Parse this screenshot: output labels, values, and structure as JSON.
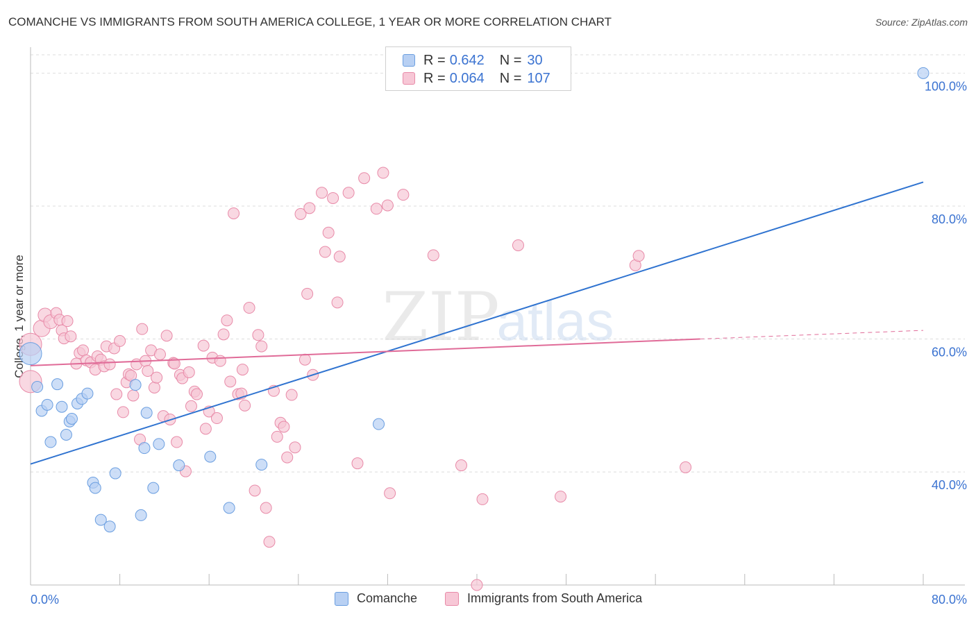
{
  "title": "COMANCHE VS IMMIGRANTS FROM SOUTH AMERICA COLLEGE, 1 YEAR OR MORE CORRELATION CHART",
  "source": "Source: ZipAtlas.com",
  "watermark": {
    "zip": "ZIP",
    "atlas": "atlas"
  },
  "legend_top": {
    "rows": [
      {
        "r_label": "R =",
        "r_value": "0.642",
        "n_label": "N =",
        "n_value": "30"
      },
      {
        "r_label": "R =",
        "r_value": "0.064",
        "n_label": "N =",
        "n_value": "107"
      }
    ]
  },
  "legend_bottom": [
    "Comanche",
    "Immigrants from South America"
  ],
  "colors": {
    "comanche_fill": "#b8d0f3",
    "comanche_stroke": "#6a9ee0",
    "comanche_line": "#2f73d0",
    "immig_fill": "#f7c7d6",
    "immig_stroke": "#e88aa8",
    "immig_line": "#e06b98",
    "axis_text": "#3b73d1",
    "grid": "#dddddd"
  },
  "chart_data": {
    "type": "scatter",
    "title": "COMANCHE VS IMMIGRANTS FROM SOUTH AMERICA COLLEGE, 1 YEAR OR MORE CORRELATION CHART",
    "xlabel": "",
    "ylabel": "College, 1 year or more",
    "xlim": [
      0,
      80
    ],
    "ylim": [
      23,
      102
    ],
    "x_tick_labels": [
      "0.0%",
      "80.0%"
    ],
    "y_tick_labels": [
      "40.0%",
      "60.0%",
      "80.0%",
      "100.0%"
    ],
    "y_gridlines": [
      40,
      60,
      80,
      100
    ],
    "grid": true,
    "legend_position": "top-center",
    "series": [
      {
        "name": "Comanche",
        "R": 0.642,
        "N": 30,
        "trend": {
          "x": [
            0,
            80
          ],
          "y": [
            41.2,
            83.6
          ],
          "dashed_from": null
        },
        "points": [
          [
            0.0,
            57.8,
            16
          ],
          [
            0.6,
            52.8,
            8
          ],
          [
            1.0,
            49.2,
            8
          ],
          [
            1.5,
            50.1,
            8
          ],
          [
            1.8,
            44.5,
            8
          ],
          [
            2.4,
            53.2,
            8
          ],
          [
            2.8,
            49.8,
            8
          ],
          [
            3.2,
            45.6,
            8
          ],
          [
            3.5,
            47.6,
            8
          ],
          [
            3.7,
            48.0,
            8
          ],
          [
            4.2,
            50.3,
            8
          ],
          [
            4.6,
            51.0,
            8
          ],
          [
            5.1,
            51.8,
            8
          ],
          [
            5.6,
            38.4,
            8
          ],
          [
            5.8,
            37.6,
            8
          ],
          [
            6.3,
            32.8,
            8
          ],
          [
            7.1,
            31.8,
            8
          ],
          [
            7.6,
            39.8,
            8
          ],
          [
            9.4,
            53.1,
            8
          ],
          [
            9.9,
            33.5,
            8
          ],
          [
            10.2,
            43.6,
            8
          ],
          [
            10.4,
            48.9,
            8
          ],
          [
            11.0,
            37.6,
            8
          ],
          [
            11.5,
            44.2,
            8
          ],
          [
            13.3,
            41.0,
            8
          ],
          [
            16.1,
            42.3,
            8
          ],
          [
            17.8,
            34.6,
            8
          ],
          [
            20.7,
            41.1,
            8
          ],
          [
            31.2,
            47.2,
            8
          ],
          [
            80.0,
            100.0,
            8
          ]
        ]
      },
      {
        "name": "Immigrants from South America",
        "R": 0.064,
        "N": 107,
        "trend": {
          "x": [
            0,
            60,
            80
          ],
          "y": [
            56.0,
            60.0,
            61.3
          ],
          "dashed_from": 60
        },
        "points": [
          [
            0.0,
            59.2,
            16
          ],
          [
            0.0,
            53.6,
            16
          ],
          [
            1.0,
            61.6,
            12
          ],
          [
            1.3,
            63.6,
            10
          ],
          [
            1.8,
            62.6,
            10
          ],
          [
            2.3,
            63.9,
            8
          ],
          [
            2.6,
            62.9,
            8
          ],
          [
            2.8,
            61.3,
            8
          ],
          [
            3.0,
            60.1,
            8
          ],
          [
            3.3,
            62.7,
            8
          ],
          [
            3.6,
            60.4,
            8
          ],
          [
            4.1,
            56.3,
            8
          ],
          [
            4.4,
            57.9,
            8
          ],
          [
            4.7,
            58.3,
            8
          ],
          [
            5.0,
            56.8,
            8
          ],
          [
            5.4,
            56.5,
            8
          ],
          [
            5.8,
            55.4,
            8
          ],
          [
            6.0,
            57.4,
            8
          ],
          [
            6.3,
            56.9,
            8
          ],
          [
            6.6,
            55.9,
            8
          ],
          [
            6.8,
            58.9,
            8
          ],
          [
            7.1,
            56.2,
            8
          ],
          [
            7.5,
            58.6,
            8
          ],
          [
            7.7,
            51.7,
            8
          ],
          [
            8.0,
            59.7,
            8
          ],
          [
            8.3,
            49.0,
            8
          ],
          [
            8.6,
            53.5,
            8
          ],
          [
            8.8,
            54.7,
            8
          ],
          [
            9.2,
            51.5,
            8
          ],
          [
            9.5,
            56.2,
            8
          ],
          [
            9.8,
            44.9,
            8
          ],
          [
            10.0,
            61.5,
            8
          ],
          [
            10.3,
            56.7,
            8
          ],
          [
            10.5,
            55.2,
            8
          ],
          [
            10.8,
            58.3,
            8
          ],
          [
            11.1,
            52.7,
            8
          ],
          [
            11.3,
            54.2,
            8
          ],
          [
            11.6,
            57.7,
            8
          ],
          [
            11.9,
            48.4,
            8
          ],
          [
            12.2,
            60.5,
            8
          ],
          [
            12.5,
            47.9,
            8
          ],
          [
            12.8,
            56.4,
            8
          ],
          [
            13.1,
            44.5,
            8
          ],
          [
            13.4,
            54.6,
            8
          ],
          [
            13.6,
            54.1,
            8
          ],
          [
            13.9,
            40.1,
            8
          ],
          [
            14.2,
            55.0,
            8
          ],
          [
            14.4,
            49.9,
            8
          ],
          [
            14.7,
            52.1,
            8
          ],
          [
            14.9,
            51.7,
            8
          ],
          [
            15.5,
            59.0,
            8
          ],
          [
            15.7,
            46.5,
            8
          ],
          [
            16.0,
            49.1,
            8
          ],
          [
            16.3,
            57.2,
            8
          ],
          [
            16.7,
            48.1,
            8
          ],
          [
            17.0,
            56.7,
            8
          ],
          [
            17.3,
            60.7,
            8
          ],
          [
            17.6,
            62.8,
            8
          ],
          [
            17.9,
            53.6,
            8
          ],
          [
            18.2,
            78.9,
            8
          ],
          [
            18.6,
            51.7,
            8
          ],
          [
            18.9,
            51.8,
            8
          ],
          [
            19.2,
            50.0,
            8
          ],
          [
            19.6,
            64.7,
            8
          ],
          [
            20.1,
            37.2,
            8
          ],
          [
            20.4,
            60.6,
            8
          ],
          [
            20.7,
            58.9,
            8
          ],
          [
            21.1,
            34.6,
            8
          ],
          [
            21.4,
            29.5,
            8
          ],
          [
            21.8,
            52.2,
            8
          ],
          [
            22.1,
            45.3,
            8
          ],
          [
            22.4,
            47.4,
            8
          ],
          [
            22.7,
            46.8,
            8
          ],
          [
            23.0,
            42.2,
            8
          ],
          [
            23.4,
            51.6,
            8
          ],
          [
            23.7,
            43.7,
            8
          ],
          [
            24.2,
            78.8,
            8
          ],
          [
            24.6,
            56.9,
            8
          ],
          [
            24.8,
            66.8,
            8
          ],
          [
            25.0,
            79.7,
            8
          ],
          [
            25.3,
            54.6,
            8
          ],
          [
            26.1,
            82.0,
            8
          ],
          [
            26.4,
            73.1,
            8
          ],
          [
            26.7,
            76.0,
            8
          ],
          [
            27.1,
            81.2,
            8
          ],
          [
            27.5,
            65.5,
            8
          ],
          [
            27.7,
            72.4,
            8
          ],
          [
            28.5,
            82.0,
            8
          ],
          [
            29.3,
            41.3,
            8
          ],
          [
            29.9,
            84.2,
            8
          ],
          [
            31.0,
            79.6,
            8
          ],
          [
            32.0,
            80.1,
            8
          ],
          [
            32.2,
            36.8,
            8
          ],
          [
            33.4,
            81.7,
            8
          ],
          [
            36.1,
            72.6,
            8
          ],
          [
            38.6,
            41.0,
            8
          ],
          [
            40.5,
            35.9,
            8
          ],
          [
            43.7,
            74.1,
            8
          ],
          [
            47.5,
            36.3,
            8
          ],
          [
            54.2,
            71.1,
            8
          ],
          [
            54.5,
            72.5,
            8
          ],
          [
            58.7,
            40.7,
            8
          ],
          [
            31.6,
            85.0,
            8
          ],
          [
            40.0,
            23.0,
            8
          ],
          [
            19.0,
            55.4,
            8
          ],
          [
            12.9,
            56.3,
            8
          ],
          [
            9.0,
            54.5,
            8
          ]
        ]
      }
    ]
  }
}
